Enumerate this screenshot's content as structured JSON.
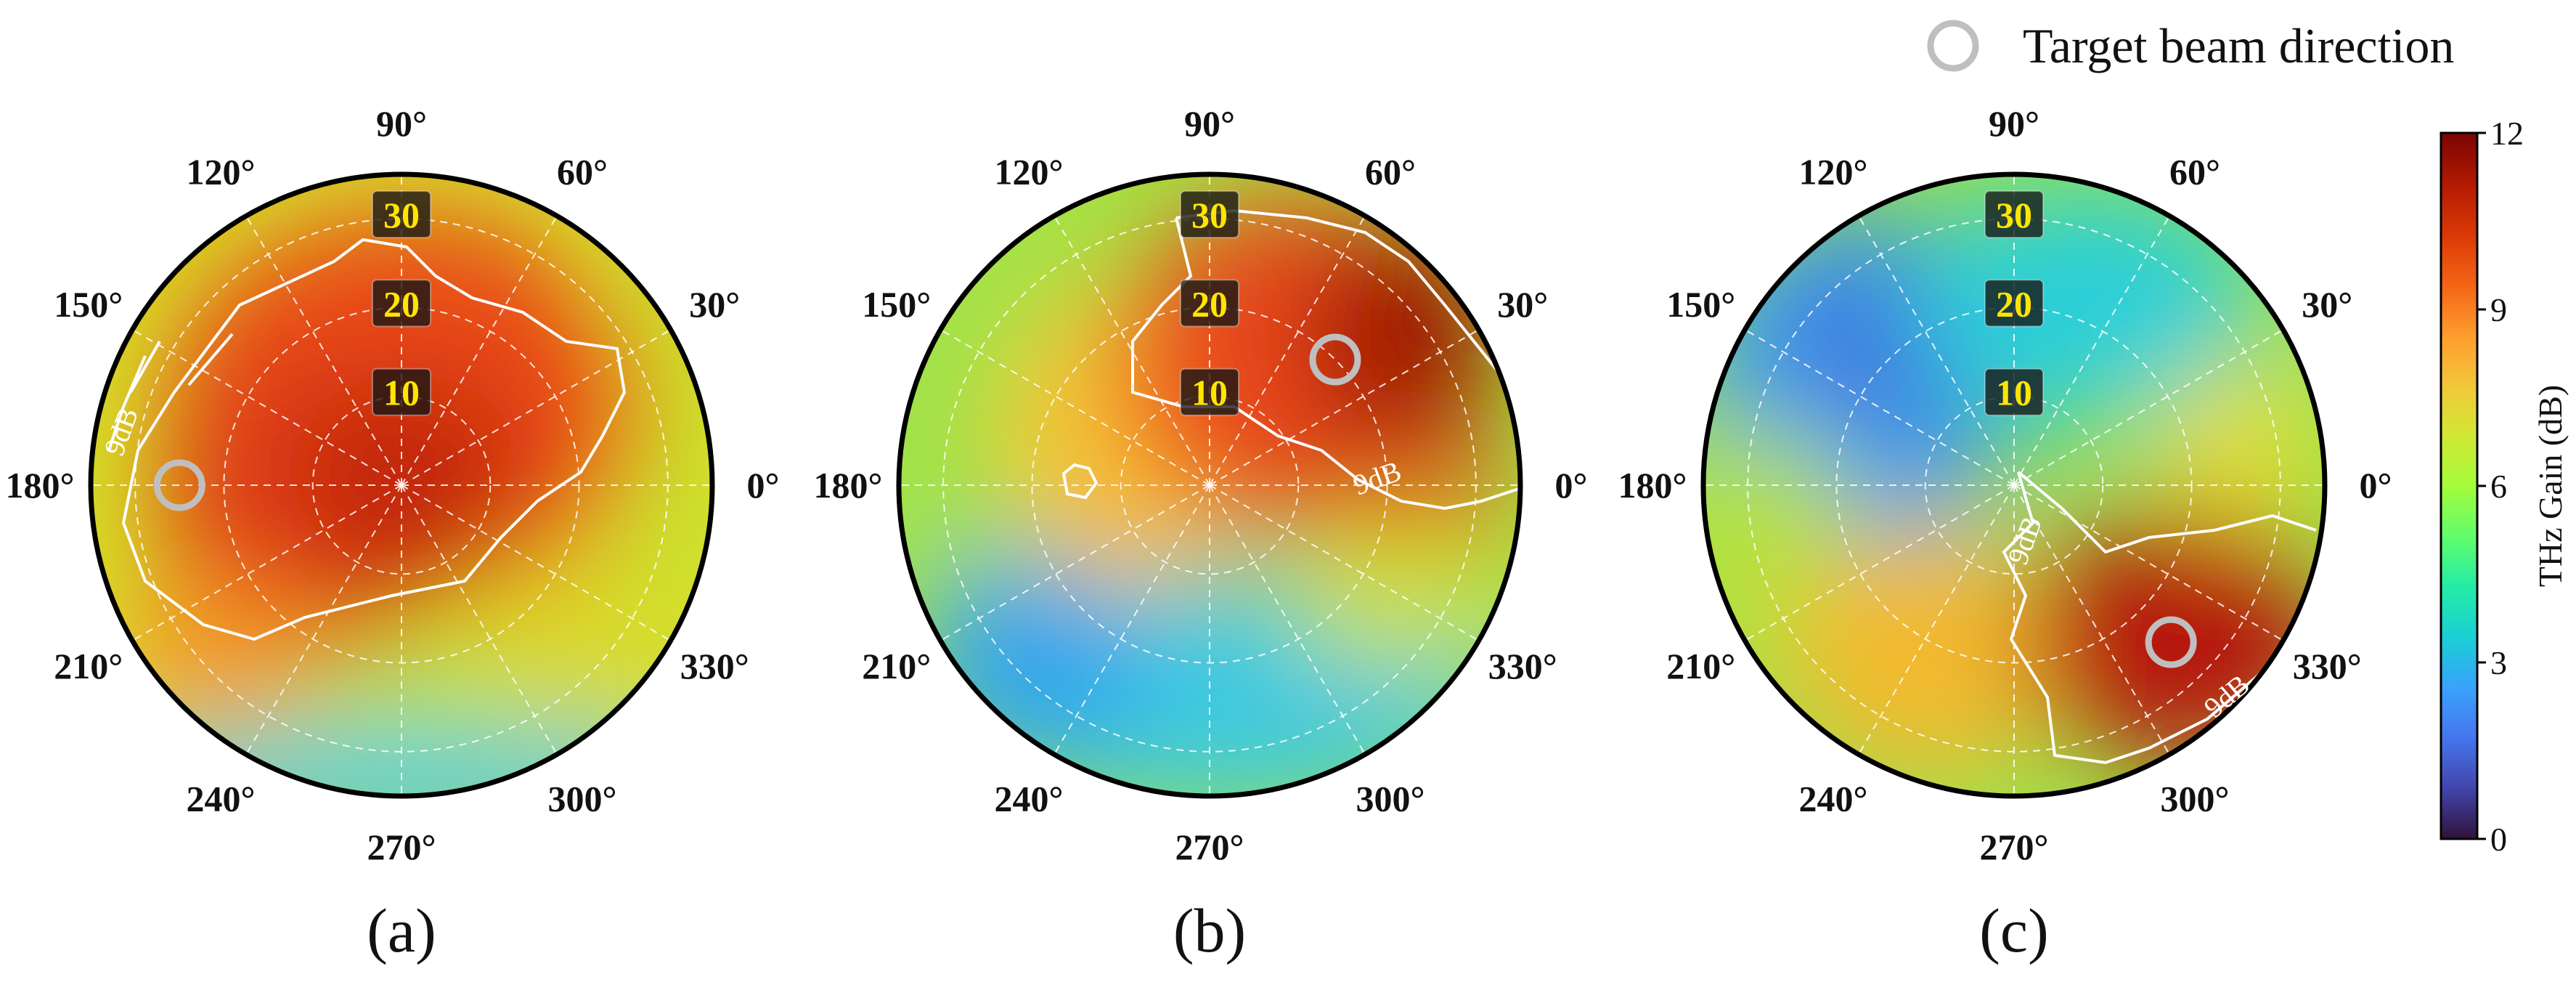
{
  "legend": {
    "label": "Target beam direction",
    "marker_color": "#bfbfbf"
  },
  "colorbar": {
    "label": "THz Gain (dB)",
    "min": 0,
    "max": 12,
    "ticks": [
      "0",
      "3",
      "6",
      "9",
      "12"
    ],
    "colormap": "turbo"
  },
  "chart_data": [
    {
      "type": "heatmap",
      "projection": "polar",
      "panel_label": "(a)",
      "theta_ticks": [
        "0°",
        "30°",
        "60°",
        "90°",
        "120°",
        "150°",
        "180°",
        "210°",
        "240°",
        "270°",
        "300°",
        "330°"
      ],
      "radial_ticks": [
        "10",
        "20",
        "30"
      ],
      "radial_range": [
        0,
        35
      ],
      "value_range_db": [
        0,
        12
      ],
      "contour": {
        "level_db": 9,
        "label": "9dB"
      },
      "target_beam": {
        "theta_deg": 180,
        "r": 25
      },
      "dominant_gain_region": {
        "theta_range_deg": [
          110,
          330
        ],
        "gain_db": 10.5
      }
    },
    {
      "type": "heatmap",
      "projection": "polar",
      "panel_label": "(b)",
      "theta_ticks": [
        "0°",
        "30°",
        "60°",
        "90°",
        "120°",
        "150°",
        "180°",
        "210°",
        "240°",
        "270°",
        "300°",
        "330°"
      ],
      "radial_ticks": [
        "10",
        "20",
        "30"
      ],
      "radial_range": [
        0,
        35
      ],
      "value_range_db": [
        0,
        12
      ],
      "contour": {
        "level_db": 9,
        "label": "9dB"
      },
      "target_beam": {
        "theta_deg": 45,
        "r": 20
      },
      "dominant_gain_region": {
        "theta_range_deg": [
          -20,
          100
        ],
        "gain_db": 11
      }
    },
    {
      "type": "heatmap",
      "projection": "polar",
      "panel_label": "(c)",
      "theta_ticks": [
        "0°",
        "30°",
        "60°",
        "90°",
        "120°",
        "150°",
        "180°",
        "210°",
        "240°",
        "270°",
        "300°",
        "330°"
      ],
      "radial_ticks": [
        "10",
        "20",
        "30"
      ],
      "radial_range": [
        0,
        35
      ],
      "value_range_db": [
        0,
        12
      ],
      "contour": {
        "level_db": 9,
        "label": "9dB"
      },
      "target_beam": {
        "theta_deg": 315,
        "r": 25
      },
      "dominant_gain_region": {
        "theta_range_deg": [
          285,
          360
        ],
        "gain_db": 11.5
      }
    }
  ]
}
